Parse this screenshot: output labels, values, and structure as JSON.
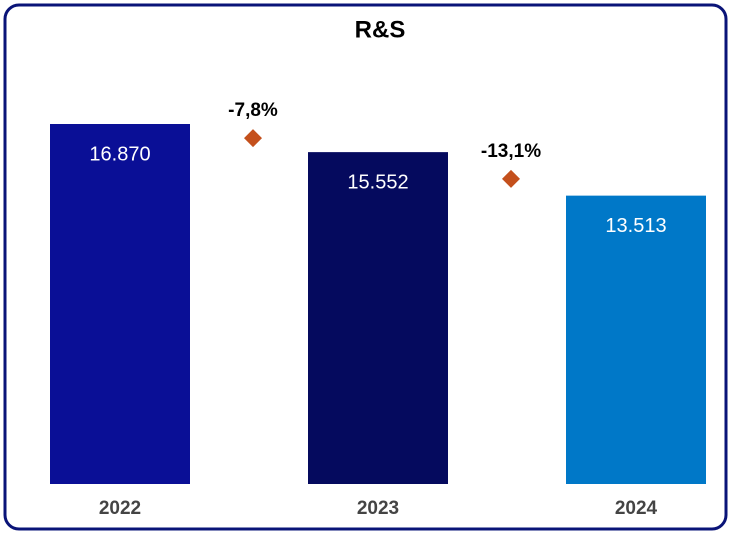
{
  "chart_data": {
    "type": "bar",
    "title": "R&S",
    "categories": [
      "2022",
      "2023",
      "2024"
    ],
    "values": [
      16870,
      15552,
      13513
    ],
    "value_labels": [
      "16.870",
      "15.552",
      "13.513"
    ],
    "colors": [
      "#0a0f96",
      "#050a5e",
      "#0078c8"
    ],
    "changes": {
      "values": [
        -7.8,
        -13.1
      ],
      "value_labels": [
        "-7,8%",
        "-13,1%"
      ],
      "color": "#c4501c"
    }
  }
}
